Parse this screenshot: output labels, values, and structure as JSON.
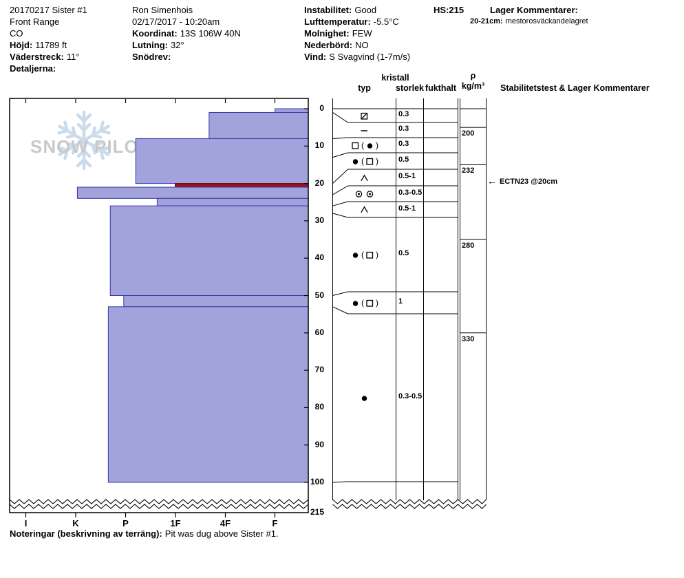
{
  "header": {
    "col1": {
      "title": "20170217 Sister #1",
      "region": "Front Range",
      "state": "CO",
      "elevation_label": "Höjd:",
      "elevation": "11789 ft",
      "aspect_label": "Väderstreck:",
      "aspect": "11°",
      "details_label": "Detaljerna:"
    },
    "col2": {
      "observer": "Ron Simenhois",
      "datetime": "02/17/2017 - 10:20am",
      "coordinate_label": "Koordinat:",
      "coordinate": "13S 106W 40N",
      "slope_label": "Lutning:",
      "slope": "32°",
      "drift_label": "Snödrev:"
    },
    "col3": {
      "instability_label": "Instabilitet:",
      "instability": "Good",
      "air_temp_label": "Lufttemperatur:",
      "air_temp": "-5.5°C",
      "sky_label": "Molnighet:",
      "sky": "FEW",
      "precip_label": "Nederbörd:",
      "precip": "NO",
      "wind_label": "Vind:",
      "wind": "S Svagvind (1-7m/s)"
    },
    "hs_label": "HS:",
    "hs_value": "215",
    "layer_comments_label": "Lager Kommentarer:",
    "layer_comment": {
      "depth": "20-21cm:",
      "text": "mestorosväckandelagret"
    }
  },
  "table_headers": {
    "kristall": "kristall",
    "typ": "typ",
    "storlek": "storlek",
    "fukthalt": "fukthalt",
    "rho": "ρ",
    "rho_unit": "kg/m³",
    "stability": "Stabilitetstest & Lager Kommentarer"
  },
  "watermark": {
    "text": "SNOW PILOT"
  },
  "footer": {
    "notes_label": "Noteringar (beskrivning av terräng):",
    "notes": "Pit was dug above Sister #1."
  },
  "chart_data": {
    "type": "snow-profile",
    "hs_cm": 215,
    "depth_axis": {
      "unit": "cm",
      "ticks": [
        0,
        10,
        20,
        30,
        40,
        50,
        60,
        70,
        80,
        90,
        100
      ],
      "total_depth_label": "215"
    },
    "hardness_axis": {
      "categories": [
        "I",
        "K",
        "P",
        "1F",
        "4F",
        "F"
      ]
    },
    "layers": [
      {
        "top_cm": 0,
        "bottom_cm": 1,
        "hardness": "F",
        "hardness_code": 1.0
      },
      {
        "top_cm": 1,
        "bottom_cm": 8,
        "hardness": "4F+",
        "hardness_code": 2.32
      },
      {
        "top_cm": 8,
        "bottom_cm": 20,
        "hardness": "P-",
        "hardness_code": 3.79
      },
      {
        "top_cm": 20,
        "bottom_cm": 21,
        "hardness": "1F",
        "hardness_code": 3.0,
        "flag": "red"
      },
      {
        "top_cm": 21,
        "bottom_cm": 24,
        "hardness": "K",
        "hardness_code": 4.96
      },
      {
        "top_cm": 24,
        "bottom_cm": 26,
        "hardness": "1F+",
        "hardness_code": 3.36
      },
      {
        "top_cm": 26,
        "bottom_cm": 50,
        "hardness": "P+",
        "hardness_code": 4.3
      },
      {
        "top_cm": 50,
        "bottom_cm": 53,
        "hardness": "P",
        "hardness_code": 4.03
      },
      {
        "top_cm": 53,
        "bottom_cm": 100,
        "hardness": "P+",
        "hardness_code": 4.34
      }
    ],
    "crystal_rows": [
      {
        "from_cm": 0,
        "to_cm": 1,
        "type_symbols": [
          "sqslash"
        ],
        "size_mm": "0.3"
      },
      {
        "from_cm": 1,
        "to_cm": 8,
        "type_symbols": [
          "dash"
        ],
        "size_mm": "0.3"
      },
      {
        "from_cm": 8,
        "to_cm": 13,
        "type_symbols": [
          "sq",
          "(",
          "dot",
          ")"
        ],
        "size_mm": "0.3"
      },
      {
        "from_cm": 13,
        "to_cm": 20,
        "type_symbols": [
          "dot",
          "(",
          "sq",
          ")"
        ],
        "size_mm": "0.5"
      },
      {
        "from_cm": 20,
        "to_cm": 23,
        "type_symbols": [
          "cup"
        ],
        "size_mm": "0.5-1"
      },
      {
        "from_cm": 23,
        "to_cm": 26,
        "type_symbols": [
          "odot",
          "odot"
        ],
        "size_mm": "0.3-0.5"
      },
      {
        "from_cm": 26,
        "to_cm": 28,
        "type_symbols": [
          "cup"
        ],
        "size_mm": "0.5-1"
      },
      {
        "from_cm": 28,
        "to_cm": 50,
        "type_symbols": [
          "dot",
          "(",
          "sq",
          ")"
        ],
        "size_mm": "0.5"
      },
      {
        "from_cm": 50,
        "to_cm": 53,
        "type_symbols": [
          "dot",
          "(",
          "sq",
          ")"
        ],
        "size_mm": "1"
      },
      {
        "from_cm": 53,
        "to_cm": 100,
        "type_symbols": [
          "dot"
        ],
        "size_mm": "0.3-0.5"
      }
    ],
    "density_kg_m3": [
      {
        "from_cm": 5,
        "to_cm": 15,
        "value": 200
      },
      {
        "from_cm": 15,
        "to_cm": 35,
        "value": 232
      },
      {
        "from_cm": 35,
        "to_cm": 60,
        "value": 280
      },
      {
        "from_cm": 60,
        "to_cm": 100,
        "value": 330
      }
    ],
    "stability_tests": [
      {
        "depth_cm": 20,
        "label": "ECTN23 @20cm"
      }
    ]
  }
}
